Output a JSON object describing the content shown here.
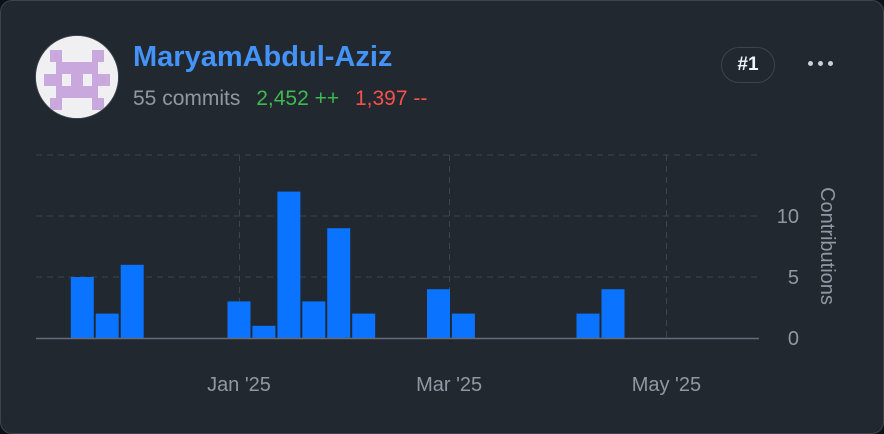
{
  "user": {
    "name": "MaryamAbdul-Aziz",
    "commits": "55 commits",
    "additions": "2,452 ++",
    "deletions": "1,397 --",
    "rank": "#1"
  },
  "colors": {
    "bar": "#0a73ff",
    "link": "#4493f8",
    "additions": "#3fb950",
    "deletions": "#f85149",
    "card_background": "#212830"
  },
  "icons": {
    "avatar": "identicon",
    "more": "kebab-horizontal-icon"
  },
  "chart_data": {
    "type": "bar",
    "x_axis": "date",
    "x_tick_labels": [
      "Jan '25",
      "Mar '25",
      "May '25"
    ],
    "x_tick_dates": [
      "2025-01-01",
      "2025-03-01",
      "2025-05-01"
    ],
    "xlim": [
      "2024-11-05",
      "2025-05-27"
    ],
    "bar_interval": "week",
    "ylabel": "Contributions",
    "y_ticks": [
      0,
      5,
      10
    ],
    "ylim": [
      0,
      15
    ],
    "grid": true,
    "y_axis_position": "right",
    "series": [
      {
        "x": [
          "2024-11-18",
          "2024-11-25",
          "2024-12-02",
          "2025-01-01",
          "2025-01-08",
          "2025-01-15",
          "2025-01-22",
          "2025-01-29",
          "2025-02-05",
          "2025-02-26",
          "2025-03-05",
          "2025-04-09",
          "2025-04-16"
        ],
        "values": [
          5,
          2,
          6,
          3,
          1,
          12,
          3,
          9,
          2,
          4,
          2,
          2,
          4
        ]
      }
    ]
  }
}
